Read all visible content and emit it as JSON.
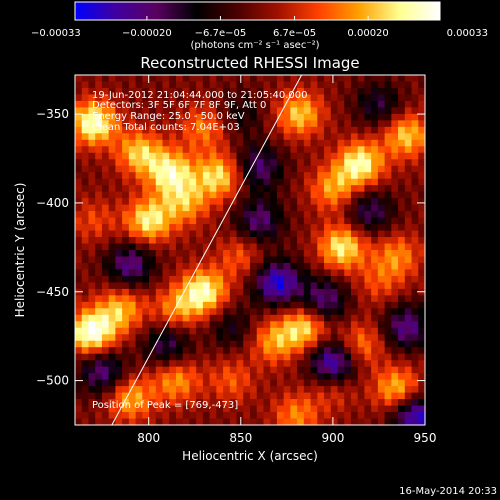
{
  "chart_data": {
    "type": "heatmap",
    "title": "Reconstructed RHESSI Image",
    "xlabel": "Heliocentric X (arcsec)",
    "ylabel": "Heliocentric Y (arcsec)",
    "xlim": [
      760,
      950
    ],
    "ylim": [
      -525,
      -328
    ],
    "x_ticks": [
      800,
      850,
      900,
      950
    ],
    "y_ticks": [
      -350,
      -400,
      -450,
      -500
    ],
    "x_tick_labels": [
      "800",
      "850",
      "900",
      "950"
    ],
    "y_tick_labels": [
      "−350",
      "−400",
      "−450",
      "−500"
    ],
    "colorbar": {
      "min": -0.00033,
      "max": 0.00033,
      "unit_label": "(photons cm⁻² s⁻¹ asec⁻²)",
      "tick_values": [
        -0.00033,
        -0.0002,
        -6.7e-05,
        6.7e-05,
        0.0002,
        0.00033
      ],
      "tick_labels": [
        "−0.00033",
        "−0.00020",
        "−6.7e−05",
        "6.7e−05",
        "0.00020",
        "0.00033"
      ],
      "colormap": [
        "#0000ff",
        "#3f00a0",
        "#5a0060",
        "#000000",
        "#4a0000",
        "#a01000",
        "#ff4000",
        "#ffa000",
        "#ffff90",
        "#ffffff"
      ]
    },
    "peak": [
      769,
      -473
    ],
    "limb_line": {
      "x1": 780,
      "y1": -525,
      "x2": 883,
      "y2": -328
    },
    "blobs": [
      {
        "x": 770,
        "y": -355,
        "v": 0.0003
      },
      {
        "x": 795,
        "y": -372,
        "v": 0.00022
      },
      {
        "x": 812,
        "y": -383,
        "v": 0.00026
      },
      {
        "x": 838,
        "y": -385,
        "v": 0.00024
      },
      {
        "x": 830,
        "y": -358,
        "v": 0.00015
      },
      {
        "x": 800,
        "y": -410,
        "v": 0.00026
      },
      {
        "x": 820,
        "y": -400,
        "v": 0.00018
      },
      {
        "x": 770,
        "y": -410,
        "v": 0.0001
      },
      {
        "x": 830,
        "y": -450,
        "v": 0.00028
      },
      {
        "x": 815,
        "y": -460,
        "v": 0.00016
      },
      {
        "x": 850,
        "y": -430,
        "v": 0.00012
      },
      {
        "x": 769,
        "y": -473,
        "v": 0.00033
      },
      {
        "x": 785,
        "y": -460,
        "v": 0.0002
      },
      {
        "x": 790,
        "y": -510,
        "v": 0.0002
      },
      {
        "x": 815,
        "y": -500,
        "v": 0.00018
      },
      {
        "x": 845,
        "y": -500,
        "v": 0.00012
      },
      {
        "x": 882,
        "y": -350,
        "v": 0.00022
      },
      {
        "x": 915,
        "y": -378,
        "v": 0.00028
      },
      {
        "x": 940,
        "y": -362,
        "v": 0.00022
      },
      {
        "x": 900,
        "y": -392,
        "v": 0.00018
      },
      {
        "x": 905,
        "y": -425,
        "v": 0.00026
      },
      {
        "x": 935,
        "y": -430,
        "v": 0.00016
      },
      {
        "x": 925,
        "y": -445,
        "v": 0.0001
      },
      {
        "x": 885,
        "y": -470,
        "v": 0.00024
      },
      {
        "x": 868,
        "y": -478,
        "v": 0.00018
      },
      {
        "x": 915,
        "y": -480,
        "v": 0.00016
      },
      {
        "x": 880,
        "y": -520,
        "v": 0.00016
      },
      {
        "x": 935,
        "y": -505,
        "v": 0.00022
      },
      {
        "x": 900,
        "y": -505,
        "v": 0.0001
      },
      {
        "x": 860,
        "y": -410,
        "v": -0.0002
      },
      {
        "x": 870,
        "y": -445,
        "v": -0.0003
      },
      {
        "x": 895,
        "y": -455,
        "v": -0.00022
      },
      {
        "x": 900,
        "y": -490,
        "v": -0.0003
      },
      {
        "x": 940,
        "y": -470,
        "v": -0.00022
      },
      {
        "x": 945,
        "y": -520,
        "v": -0.0003
      },
      {
        "x": 920,
        "y": -405,
        "v": -0.00018
      },
      {
        "x": 860,
        "y": -380,
        "v": -0.0002
      },
      {
        "x": 925,
        "y": -345,
        "v": -0.00015
      },
      {
        "x": 790,
        "y": -435,
        "v": -0.00022
      },
      {
        "x": 810,
        "y": -480,
        "v": -0.00018
      },
      {
        "x": 775,
        "y": -495,
        "v": -0.00022
      },
      {
        "x": 845,
        "y": -470,
        "v": -0.00012
      },
      {
        "x": 850,
        "y": -350,
        "v": -0.0001
      }
    ]
  },
  "annotations": {
    "time_range": "19-Jun-2012 21:04:44.000 to 21:05:40.000",
    "detectors": "Detectors: 3F 5F 6F 7F 8F 9F, Att 0",
    "energy_range": "Energy Range: 25.0 - 50.0 keV",
    "clean_counts": "Clean    Total counts: 7.04E+03",
    "peak_position": "Position of Peak = [769,-473]"
  },
  "footer": {
    "timestamp": "16-May-2014 20:33"
  }
}
